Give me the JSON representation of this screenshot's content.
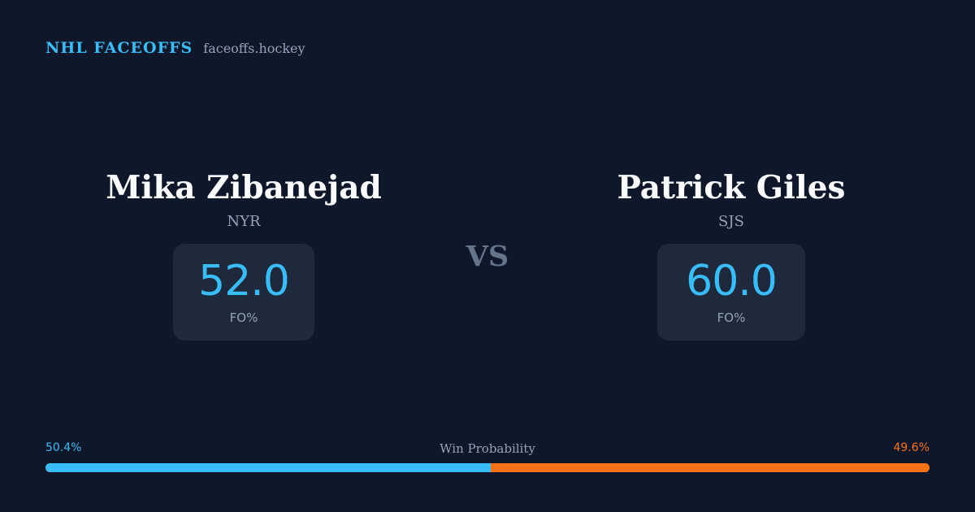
{
  "header": {
    "brand": "NHL FACEOFFS",
    "domain": "faceoffs.hockey"
  },
  "players": {
    "left": {
      "name": "Mika Zibanejad",
      "team": "NYR",
      "stat_value": "52.0",
      "stat_label": "FO%"
    },
    "right": {
      "name": "Patrick Giles",
      "team": "SJS",
      "stat_value": "60.0",
      "stat_label": "FO%"
    }
  },
  "versus": "VS",
  "win_probability": {
    "title": "Win Probability",
    "left_label": "50.4%",
    "right_label": "49.6%",
    "left_fraction": 0.504,
    "right_fraction": 0.496
  },
  "colors": {
    "background": "#0f172a",
    "card": "#1e293b",
    "accent_blue": "#38bdf8",
    "accent_orange": "#f97316",
    "muted": "#94a3b8"
  }
}
